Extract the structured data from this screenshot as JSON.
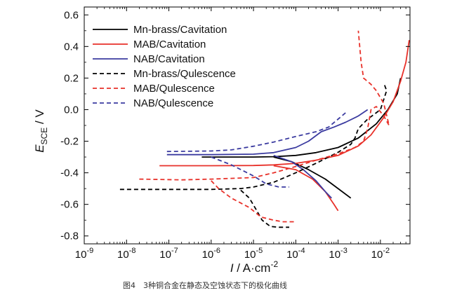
{
  "chart_data": {
    "type": "line",
    "x_scale": "log",
    "xlim": [
      1e-09,
      0.05
    ],
    "ylim": [
      -0.85,
      0.65
    ],
    "x_tick_labels": [
      {
        "base": "10",
        "exp": "-9",
        "value": 1e-09
      },
      {
        "base": "10",
        "exp": "-8",
        "value": 1e-08
      },
      {
        "base": "10",
        "exp": "-7",
        "value": 1e-07
      },
      {
        "base": "10",
        "exp": "-6",
        "value": 1e-06
      },
      {
        "base": "10",
        "exp": "-5",
        "value": 1e-05
      },
      {
        "base": "10",
        "exp": "-4",
        "value": 0.0001
      },
      {
        "base": "10",
        "exp": "-3",
        "value": 0.001
      },
      {
        "base": "10",
        "exp": "-2",
        "value": 0.01
      }
    ],
    "y_ticks": [
      0.6,
      0.4,
      0.2,
      0.0,
      -0.2,
      -0.4,
      -0.6,
      -0.8
    ],
    "y_tick_labels": [
      "0.6",
      "0.4",
      "0.2",
      "0.0",
      "-0.2",
      "-0.4",
      "-0.6",
      "-0.8"
    ],
    "xlabel": {
      "italic": "I",
      "rest": " / A·cm",
      "sup": "-2"
    },
    "ylabel": {
      "italic": "E",
      "sub": "SCE",
      "rest": " / V"
    },
    "legend_position": "top-left",
    "grid": false,
    "series": [
      {
        "name": "Mn-brass/Cavitation",
        "color": "#000000",
        "dash": "solid",
        "points": [
          [
            6e-07,
            -0.3
          ],
          [
            3e-06,
            -0.3
          ],
          [
            1e-05,
            -0.3
          ],
          [
            3e-05,
            -0.298
          ],
          [
            0.0001,
            -0.29
          ],
          [
            0.0003,
            -0.272
          ],
          [
            0.001,
            -0.24
          ],
          [
            0.003,
            -0.18
          ],
          [
            0.008,
            -0.09
          ],
          [
            0.015,
            0.0
          ],
          [
            0.025,
            0.1
          ],
          [
            0.03,
            0.2
          ]
        ]
      },
      {
        "name": "Mn-brass/Cavitation",
        "color": "#000000",
        "dash": "solid",
        "points": [
          [
            3e-05,
            -0.3
          ],
          [
            8e-05,
            -0.33
          ],
          [
            0.0002,
            -0.38
          ],
          [
            0.0005,
            -0.44
          ],
          [
            0.001,
            -0.5
          ],
          [
            0.002,
            -0.56
          ]
        ]
      },
      {
        "name": "MAB/Cavitation",
        "color": "#e8312a",
        "dash": "solid",
        "points": [
          [
            6e-08,
            -0.355
          ],
          [
            1e-06,
            -0.355
          ],
          [
            1e-05,
            -0.354
          ],
          [
            3e-05,
            -0.35
          ],
          [
            0.0001,
            -0.34
          ],
          [
            0.0003,
            -0.32
          ],
          [
            0.001,
            -0.29
          ],
          [
            0.003,
            -0.23
          ],
          [
            0.006,
            -0.16
          ],
          [
            0.012,
            -0.05
          ],
          [
            0.02,
            0.05
          ],
          [
            0.03,
            0.18
          ],
          [
            0.04,
            0.3
          ],
          [
            0.048,
            0.44
          ]
        ]
      },
      {
        "name": "MAB/Cavitation",
        "color": "#e8312a",
        "dash": "solid",
        "points": [
          [
            3e-05,
            -0.355
          ],
          [
            0.0001,
            -0.38
          ],
          [
            0.00025,
            -0.44
          ],
          [
            0.0005,
            -0.52
          ],
          [
            0.0008,
            -0.6
          ],
          [
            0.001,
            -0.64
          ]
        ]
      },
      {
        "name": "NAB/Cavitation",
        "color": "#3b3ba0",
        "dash": "solid",
        "points": [
          [
            9e-08,
            -0.285
          ],
          [
            1e-06,
            -0.285
          ],
          [
            1e-05,
            -0.282
          ],
          [
            3e-05,
            -0.272
          ],
          [
            0.0001,
            -0.24
          ],
          [
            0.0002,
            -0.2
          ],
          [
            0.0004,
            -0.14
          ],
          [
            0.0008,
            -0.11
          ],
          [
            0.0015,
            -0.08
          ],
          [
            0.003,
            -0.04
          ],
          [
            0.005,
            0.0
          ]
        ]
      },
      {
        "name": "NAB/Cavitation",
        "color": "#3b3ba0",
        "dash": "solid",
        "points": [
          [
            3e-05,
            -0.29
          ],
          [
            8e-05,
            -0.33
          ],
          [
            0.00015,
            -0.38
          ],
          [
            0.0003,
            -0.45
          ],
          [
            0.0005,
            -0.52
          ],
          [
            0.0007,
            -0.56
          ]
        ]
      },
      {
        "name": "Mn-brass/Qulescence",
        "color": "#000000",
        "dash": "dashed",
        "points": [
          [
            7e-09,
            -0.505
          ],
          [
            1e-07,
            -0.505
          ],
          [
            1e-06,
            -0.505
          ],
          [
            5e-06,
            -0.5
          ],
          [
            1e-05,
            -0.49
          ],
          [
            3e-05,
            -0.46
          ],
          [
            0.0001,
            -0.4
          ],
          [
            0.0003,
            -0.34
          ],
          [
            0.001,
            -0.27
          ],
          [
            0.002,
            -0.22
          ],
          [
            0.0025,
            -0.18
          ],
          [
            0.003,
            -0.12
          ],
          [
            0.005,
            -0.06
          ],
          [
            0.01,
            0.0
          ],
          [
            0.014,
            0.12
          ],
          [
            0.012,
            0.17
          ]
        ]
      },
      {
        "name": "Mn-brass/Qulescence",
        "color": "#000000",
        "dash": "dashed",
        "points": [
          [
            5e-06,
            -0.51
          ],
          [
            8e-06,
            -0.56
          ],
          [
            1.2e-05,
            -0.64
          ],
          [
            1.6e-05,
            -0.7
          ],
          [
            2.5e-05,
            -0.74
          ],
          [
            4e-05,
            -0.745
          ],
          [
            7e-05,
            -0.745
          ]
        ]
      },
      {
        "name": "MAB/Qulescence",
        "color": "#e8312a",
        "dash": "dashed",
        "points": [
          [
            2e-08,
            -0.44
          ],
          [
            2e-07,
            -0.445
          ],
          [
            1e-06,
            -0.44
          ],
          [
            1e-05,
            -0.43
          ],
          [
            3e-05,
            -0.4
          ],
          [
            0.0001,
            -0.36
          ],
          [
            0.0003,
            -0.32
          ],
          [
            0.001,
            -0.28
          ],
          [
            0.0025,
            -0.24
          ],
          [
            0.004,
            -0.2
          ],
          [
            0.005,
            -0.12
          ],
          [
            0.006,
            0.0
          ],
          [
            0.008,
            0.02
          ],
          [
            0.012,
            -0.04
          ],
          [
            0.016,
            -0.1
          ],
          [
            0.012,
            0.04
          ],
          [
            0.008,
            0.12
          ],
          [
            0.006,
            0.16
          ],
          [
            0.004,
            0.2
          ],
          [
            0.0035,
            0.3
          ],
          [
            0.003,
            0.5
          ]
        ]
      },
      {
        "name": "MAB/Qulescence",
        "color": "#e8312a",
        "dash": "dashed",
        "points": [
          [
            1e-06,
            -0.45
          ],
          [
            1.5e-06,
            -0.5
          ],
          [
            3e-06,
            -0.56
          ],
          [
            8e-06,
            -0.62
          ],
          [
            1.5e-05,
            -0.68
          ],
          [
            3e-05,
            -0.7
          ],
          [
            5e-05,
            -0.71
          ],
          [
            0.0001,
            -0.71
          ]
        ]
      },
      {
        "name": "NAB/Qulescence",
        "color": "#3b3ba0",
        "dash": "dashed",
        "points": [
          [
            9e-08,
            -0.265
          ],
          [
            1e-06,
            -0.262
          ],
          [
            3e-06,
            -0.255
          ],
          [
            1e-05,
            -0.232
          ],
          [
            3e-05,
            -0.205
          ],
          [
            0.0001,
            -0.17
          ],
          [
            0.0003,
            -0.14
          ],
          [
            0.0006,
            -0.11
          ],
          [
            0.001,
            -0.06
          ],
          [
            0.0015,
            -0.02
          ]
        ]
      },
      {
        "name": "NAB/Qulescence",
        "color": "#3b3ba0",
        "dash": "dashed",
        "points": [
          [
            1e-06,
            -0.3
          ],
          [
            3e-06,
            -0.35
          ],
          [
            1e-05,
            -0.42
          ],
          [
            2e-05,
            -0.47
          ],
          [
            4e-05,
            -0.49
          ],
          [
            7e-05,
            -0.49
          ]
        ]
      }
    ],
    "legend": [
      {
        "label": "Mn-brass/Cavitation",
        "color": "#000000",
        "dash": "solid"
      },
      {
        "label": "MAB/Cavitation",
        "color": "#e8312a",
        "dash": "solid"
      },
      {
        "label": "NAB/Cavitation",
        "color": "#3b3ba0",
        "dash": "solid"
      },
      {
        "label": "Mn-brass/Qulescence",
        "color": "#000000",
        "dash": "dashed"
      },
      {
        "label": "MAB/Qulescence",
        "color": "#e8312a",
        "dash": "dashed"
      },
      {
        "label": "NAB/Qulescence",
        "color": "#3b3ba0",
        "dash": "dashed"
      }
    ]
  },
  "caption": "图4　3种铜合金在静态及空蚀状态下的极化曲线"
}
